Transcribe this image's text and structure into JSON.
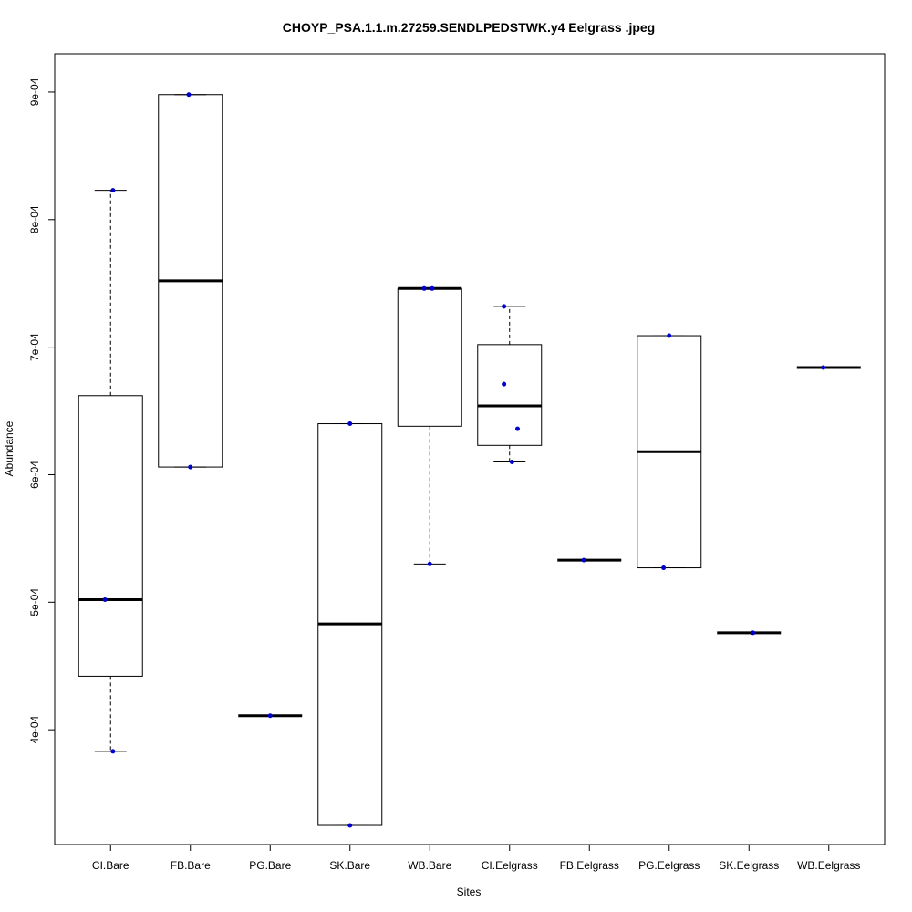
{
  "chart_data": {
    "type": "boxplot",
    "title": "CHOYP_PSA.1.1.m.27259.SENDLPEDSTWK.y4 Eelgrass .jpeg",
    "xlabel": "Sites",
    "ylabel": "Abundance",
    "ylim": [
      0.00031,
      0.00093
    ],
    "y_ticks": [
      {
        "value": 0.0004,
        "label": "4e-04"
      },
      {
        "value": 0.0005,
        "label": "5e-04"
      },
      {
        "value": 0.0006,
        "label": "6e-04"
      },
      {
        "value": 0.0007,
        "label": "7e-04"
      },
      {
        "value": 0.0008,
        "label": "8e-04"
      },
      {
        "value": 0.0009,
        "label": "9e-04"
      }
    ],
    "categories": [
      "CI.Bare",
      "FB.Bare",
      "PG.Bare",
      "SK.Bare",
      "WB.Bare",
      "CI.Eelgrass",
      "FB.Eelgrass",
      "PG.Eelgrass",
      "SK.Eelgrass",
      "WB.Eelgrass"
    ],
    "point_color": "#0000cc",
    "boxes": [
      {
        "name": "CI.Bare",
        "whisker_low": 0.000383,
        "q1": 0.000442,
        "median": 0.000502,
        "q3": 0.000662,
        "whisker_high": 0.000823,
        "points": [
          {
            "offset": 0.03,
            "y": 0.000823
          },
          {
            "offset": -0.07,
            "y": 0.000502
          },
          {
            "offset": 0.03,
            "y": 0.000383
          }
        ]
      },
      {
        "name": "FB.Bare",
        "whisker_low": 0.000606,
        "q1": 0.000606,
        "median": 0.000752,
        "q3": 0.000898,
        "whisker_high": 0.000898,
        "points": [
          {
            "offset": -0.02,
            "y": 0.000898
          },
          {
            "offset": 0.0,
            "y": 0.000606
          }
        ]
      },
      {
        "name": "PG.Bare",
        "whisker_low": 0.000411,
        "q1": 0.000411,
        "median": 0.000411,
        "q3": 0.000411,
        "whisker_high": 0.000411,
        "points": [
          {
            "offset": 0.0,
            "y": 0.000411
          }
        ]
      },
      {
        "name": "SK.Bare",
        "whisker_low": 0.000325,
        "q1": 0.000325,
        "median": 0.000483,
        "q3": 0.00064,
        "whisker_high": 0.00064,
        "points": [
          {
            "offset": 0.0,
            "y": 0.00064
          },
          {
            "offset": 0.0,
            "y": 0.000325
          }
        ]
      },
      {
        "name": "WB.Bare",
        "whisker_low": 0.00053,
        "q1": 0.000638,
        "median": 0.000746,
        "q3": 0.000746,
        "whisker_high": 0.000746,
        "points": [
          {
            "offset": -0.07,
            "y": 0.000746
          },
          {
            "offset": 0.03,
            "y": 0.000746
          },
          {
            "offset": 0.0,
            "y": 0.00053
          }
        ]
      },
      {
        "name": "CI.Eelgrass",
        "whisker_low": 0.00061,
        "q1": 0.000623,
        "median": 0.000654,
        "q3": 0.000702,
        "whisker_high": 0.000732,
        "points": [
          {
            "offset": -0.07,
            "y": 0.000732
          },
          {
            "offset": -0.07,
            "y": 0.000671
          },
          {
            "offset": 0.1,
            "y": 0.000636
          },
          {
            "offset": 0.03,
            "y": 0.00061
          }
        ]
      },
      {
        "name": "FB.Eelgrass",
        "whisker_low": 0.000533,
        "q1": 0.000533,
        "median": 0.000533,
        "q3": 0.000533,
        "whisker_high": 0.000533,
        "points": [
          {
            "offset": -0.07,
            "y": 0.000533
          }
        ]
      },
      {
        "name": "PG.Eelgrass",
        "whisker_low": 0.000527,
        "q1": 0.000527,
        "median": 0.000618,
        "q3": 0.000709,
        "whisker_high": 0.000709,
        "points": [
          {
            "offset": 0.0,
            "y": 0.000709
          },
          {
            "offset": -0.07,
            "y": 0.000527
          }
        ]
      },
      {
        "name": "SK.Eelgrass",
        "whisker_low": 0.000476,
        "q1": 0.000476,
        "median": 0.000476,
        "q3": 0.000476,
        "whisker_high": 0.000476,
        "points": [
          {
            "offset": 0.05,
            "y": 0.000476
          }
        ]
      },
      {
        "name": "WB.Eelgrass",
        "whisker_low": 0.000684,
        "q1": 0.000684,
        "median": 0.000684,
        "q3": 0.000684,
        "whisker_high": 0.000684,
        "points": [
          {
            "offset": -0.07,
            "y": 0.000684
          }
        ]
      }
    ],
    "grid": false,
    "legend": "none"
  }
}
